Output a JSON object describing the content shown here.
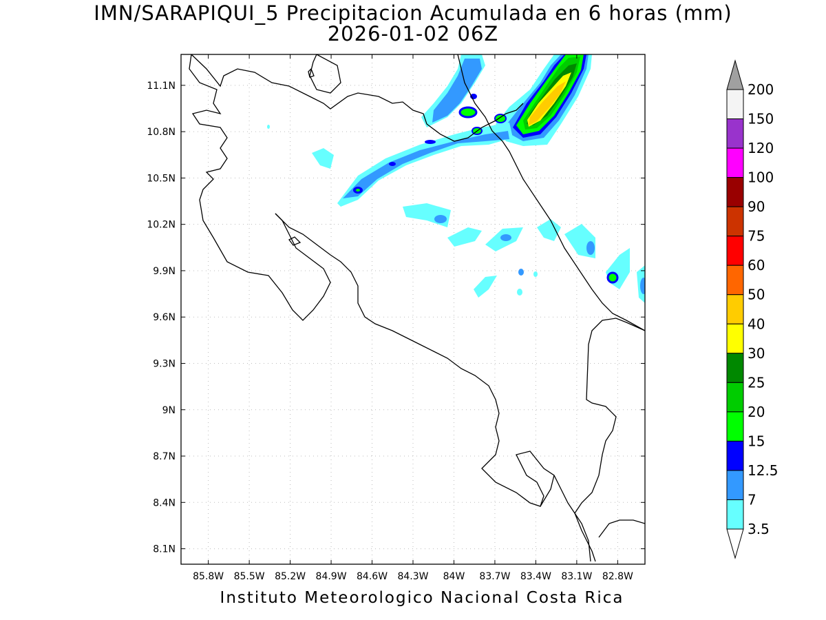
{
  "title_line1": "IMN/SARAPIQUI_5 Precipitacion Acumulada en 6 horas (mm)",
  "title_line2": "2026-01-02 06Z",
  "footer": "Instituto Meteorologico Nacional Costa Rica",
  "map": {
    "lon_range": [
      -86.0,
      -82.6
    ],
    "lat_range": [
      8.0,
      11.3
    ],
    "lat_ticks": [
      "11.1N",
      "10.8N",
      "10.5N",
      "10.2N",
      "9.9N",
      "9.6N",
      "9.3N",
      "9N",
      "8.7N",
      "8.4N",
      "8.1N"
    ],
    "lon_ticks": [
      "85.8W",
      "85.5W",
      "85.2W",
      "84.9W",
      "84.6W",
      "84.3W",
      "84W",
      "83.7W",
      "83.4W",
      "83.1W",
      "82.8W"
    ],
    "grid": true,
    "colors": {
      "c3_5": "#66ffff",
      "c7": "#3399ff",
      "c12_5": "#0000ff",
      "c15": "#00ff00",
      "c20": "#00cc00",
      "c25": "#008800",
      "c30": "#ffff00"
    }
  },
  "colorbar": {
    "labels": [
      "200",
      "150",
      "120",
      "100",
      "90",
      "75",
      "60",
      "50",
      "40",
      "30",
      "25",
      "20",
      "15",
      "12.5",
      "7",
      "3.5"
    ],
    "colors": [
      "#a0a0a0",
      "#f4f4f4",
      "#9933cc",
      "#ff00ff",
      "#990000",
      "#cc3300",
      "#ff0000",
      "#ff6600",
      "#ffcc00",
      "#ffff00",
      "#008800",
      "#00cc00",
      "#00ff00",
      "#0000ff",
      "#3399ff",
      "#66ffff",
      "#ffffff"
    ]
  }
}
